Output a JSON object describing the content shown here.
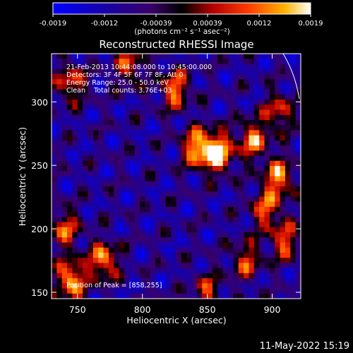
{
  "chart_data": {
    "type": "heatmap",
    "title": "Reconstructed RHESSI Image",
    "xlabel": "Heliocentric X (arcsec)",
    "ylabel": "Heliocentric Y (arcsec)",
    "xlim": [
      730,
      922
    ],
    "ylim": [
      145,
      338
    ],
    "x_ticks": [
      750,
      800,
      850,
      900
    ],
    "y_ticks": [
      150,
      200,
      250,
      300
    ],
    "colorbar": {
      "range": [
        -0.0019,
        0.0019
      ],
      "ticks": [
        "-0.0019",
        "-0.0012",
        "-0.00039",
        "0.00039",
        "0.0012",
        "0.0019"
      ],
      "units_label": "(photons cm⁻² s⁻¹ asec⁻²)"
    },
    "annotations": [
      "21-Feb-2013 10:44:08.000 to 10:45:00.000",
      "Detectors: 3F 4F 5F 6F 7F 8F, Att 0",
      "Energy Range: 25.0 - 50.0 keV",
      "Clean    Total counts: 3.76E+03"
    ],
    "peak_label": "Position of Peak = [858,255]",
    "peak": [
      858,
      255
    ],
    "grid_size": 48,
    "hotspots": [
      {
        "x": 858,
        "y": 260,
        "amp": 1.0
      },
      {
        "x": 842,
        "y": 264,
        "amp": 0.8
      },
      {
        "x": 885,
        "y": 270,
        "amp": 0.7
      },
      {
        "x": 905,
        "y": 240,
        "amp": 0.75
      },
      {
        "x": 895,
        "y": 215,
        "amp": 0.6
      },
      {
        "x": 910,
        "y": 190,
        "amp": 0.6
      },
      {
        "x": 880,
        "y": 175,
        "amp": 0.55
      },
      {
        "x": 745,
        "y": 160,
        "amp": 0.85
      },
      {
        "x": 770,
        "y": 175,
        "amp": 0.75
      },
      {
        "x": 740,
        "y": 200,
        "amp": 0.6
      },
      {
        "x": 745,
        "y": 315,
        "amp": 0.6
      },
      {
        "x": 790,
        "y": 328,
        "amp": 0.55
      },
      {
        "x": 825,
        "y": 310,
        "amp": 0.7
      },
      {
        "x": 850,
        "y": 150,
        "amp": 0.5
      },
      {
        "x": 905,
        "y": 292,
        "amp": 0.55
      }
    ]
  },
  "footer": {
    "timestamp": "11-May-2022 15:19"
  }
}
